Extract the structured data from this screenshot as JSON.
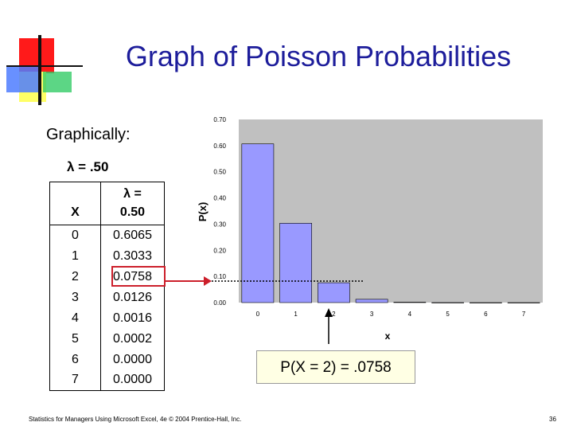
{
  "slide": {
    "title": "Graph of Poisson Probabilities",
    "subtitle": "Graphically:",
    "lambda_label": "λ = .50",
    "callout": "P(X = 2) = .0758",
    "footer": "Statistics for Managers Using Microsoft Excel, 4e © 2004 Prentice-Hall, Inc.",
    "page_number": "36"
  },
  "table": {
    "header_x": "X",
    "header_p_line1": "λ =",
    "header_p_line2": "0.50",
    "rows": [
      {
        "x": "0",
        "p": "0.6065"
      },
      {
        "x": "1",
        "p": "0.3033"
      },
      {
        "x": "2",
        "p": "0.0758"
      },
      {
        "x": "3",
        "p": "0.0126"
      },
      {
        "x": "4",
        "p": "0.0016"
      },
      {
        "x": "5",
        "p": "0.0002"
      },
      {
        "x": "6",
        "p": "0.0000"
      },
      {
        "x": "7",
        "p": "0.0000"
      }
    ],
    "highlighted_row": 2
  },
  "colors": {
    "title": "#1d1d9b",
    "bar_fill": "#9999ff",
    "plot_bg": "#c0c0c0",
    "highlight": "#cc1f2b",
    "callout_bg": "#ffffe4"
  },
  "chart_data": {
    "type": "bar",
    "categories": [
      "0",
      "1",
      "2",
      "3",
      "4",
      "5",
      "6",
      "7"
    ],
    "values": [
      0.6065,
      0.3033,
      0.0758,
      0.0126,
      0.0016,
      0.0002,
      0.0,
      0.0
    ],
    "title": "",
    "xlabel": "x",
    "ylabel": "P(x)",
    "ylim": [
      0,
      0.7
    ],
    "yticks": [
      "0.00",
      "0.10",
      "0.20",
      "0.30",
      "0.40",
      "0.50",
      "0.60",
      "0.70"
    ],
    "grid": false,
    "legend": "none"
  }
}
